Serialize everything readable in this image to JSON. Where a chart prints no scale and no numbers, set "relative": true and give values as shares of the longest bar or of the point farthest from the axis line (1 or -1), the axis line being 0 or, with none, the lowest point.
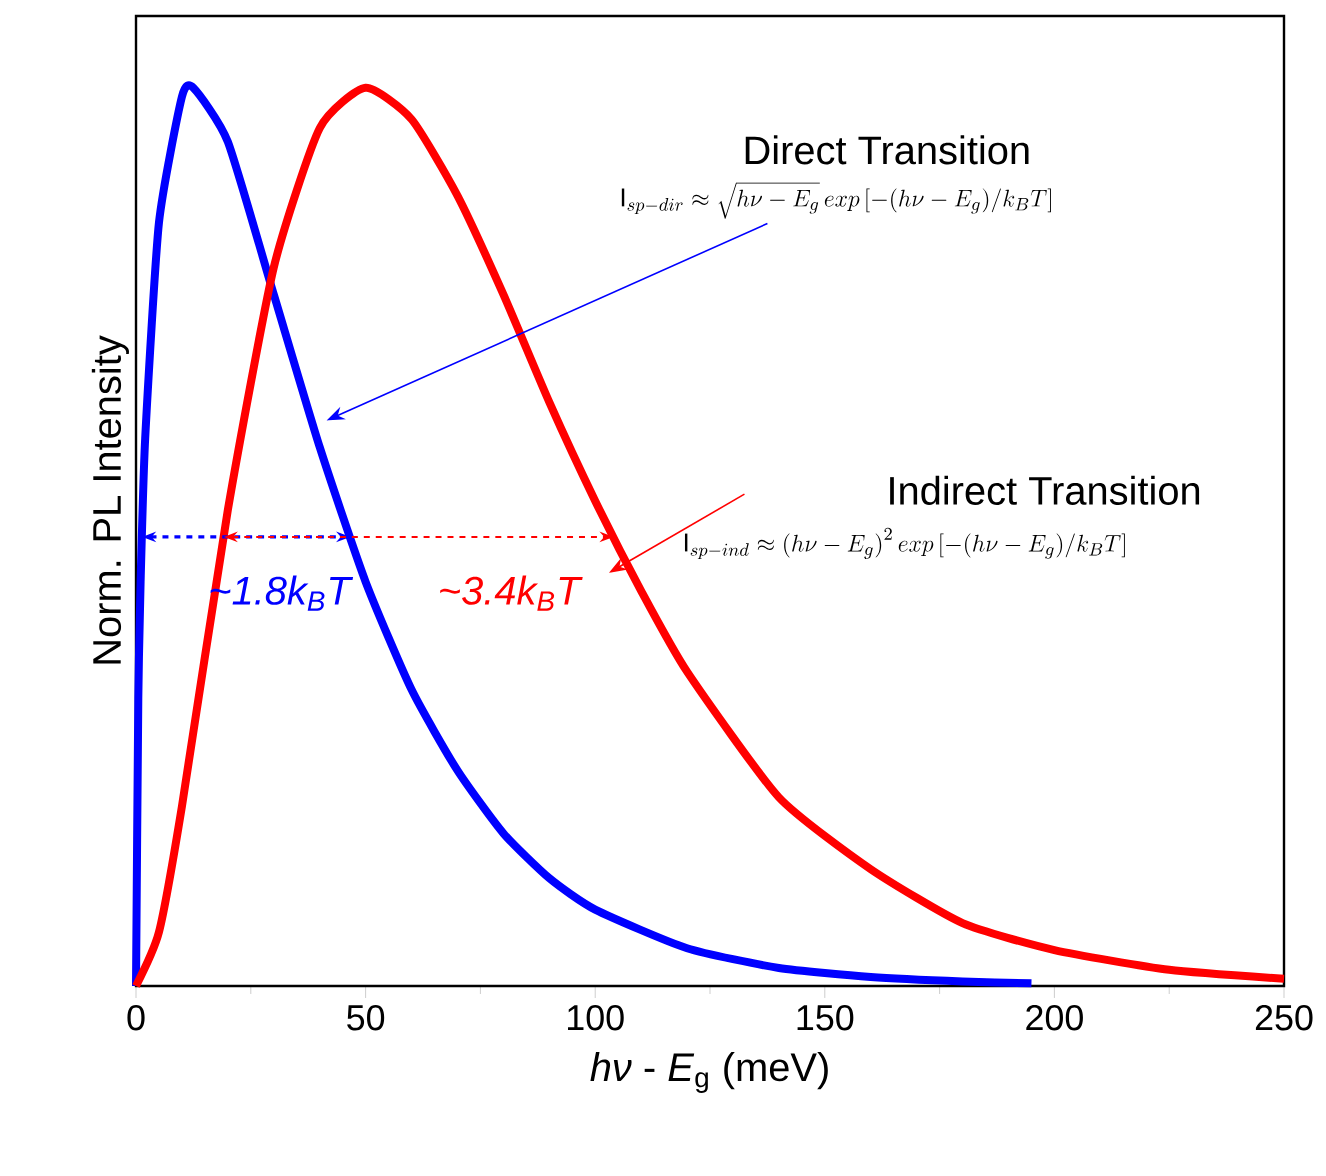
{
  "chart_data": {
    "type": "line",
    "relative": true,
    "xlabel": "*hν* - *E*$_{g}$ (meV)",
    "ylabel": "Norm. PL Intensity",
    "xlim": [
      0,
      250
    ],
    "xticks": [
      0,
      50,
      100,
      150,
      200,
      250
    ],
    "series": [
      {
        "color": "#0000ff",
        "x": [
          0,
          0.5,
          1,
          2,
          5,
          10,
          12.5,
          20,
          30,
          40,
          50,
          60,
          70,
          80,
          90,
          100,
          120,
          140,
          160,
          180,
          195
        ],
        "values": [
          0,
          0.32,
          0.45,
          0.61,
          0.85,
          0.99,
          1,
          0.94,
          0.77,
          0.6,
          0.45,
          0.33,
          0.24,
          0.17,
          0.12,
          0.085,
          0.042,
          0.02,
          0.01,
          0.005,
          0.003
        ]
      },
      {
        "color": "#ff0000",
        "x": [
          0,
          5,
          10,
          20,
          30,
          40,
          50,
          60,
          70,
          80,
          90,
          100,
          110,
          120,
          140,
          160,
          180,
          200,
          225,
          250
        ],
        "values": [
          0,
          0.06,
          0.2,
          0.53,
          0.8,
          0.955,
          1,
          0.965,
          0.88,
          0.77,
          0.65,
          0.54,
          0.44,
          0.35,
          0.21,
          0.13,
          0.07,
          0.04,
          0.018,
          0.008
        ]
      }
    ],
    "annotations": [
      "Direct Transition",
      "\\mathrm{I}_{sp-dir} \\approx \\sqrt{h\\nu - E_g}\\,exp\\left[-(h\\nu - E_g)/k_BT\\right]",
      "Indirect Transition",
      "\\mathrm{I}_{sp-ind} \\approx \\left(h\\nu - E_g\\right)^2 exp\\left[-(h\\nu - E_g)/k_BT\\right]",
      "~1.8k$_{B}$T",
      "~3.4k$_{B}$T"
    ]
  }
}
